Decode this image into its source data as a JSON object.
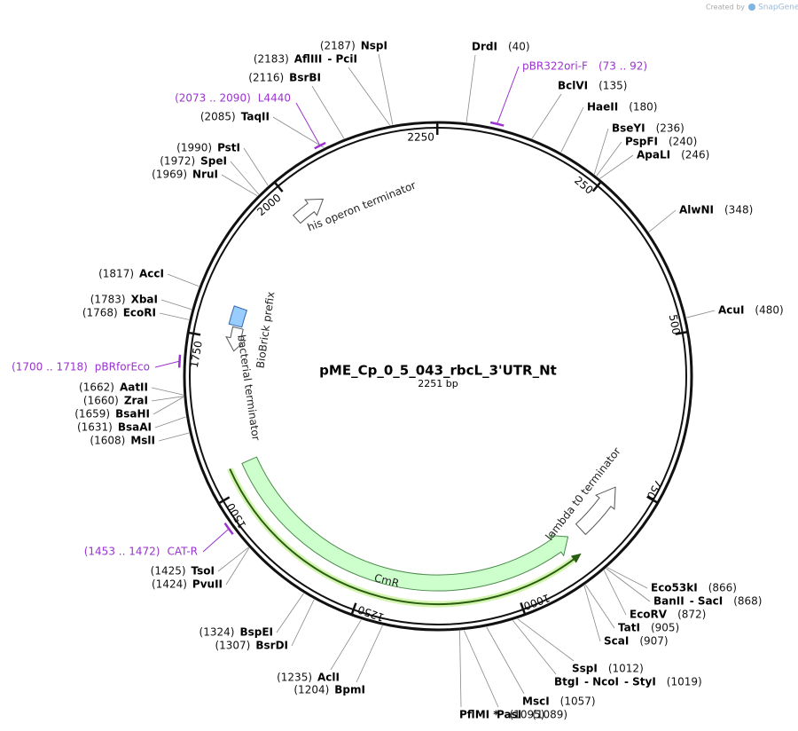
{
  "watermark": {
    "prefix": "Created by",
    "brand": "SnapGene"
  },
  "plasmid": {
    "name": "pME_Cp_0_5_043_rbcL_3'UTR_Nt",
    "length": {
      "value": 2251,
      "label": "2251 bp"
    },
    "ticks": [
      250,
      500,
      750,
      1000,
      1250,
      1500,
      1750,
      2000,
      2250
    ]
  },
  "sites": [
    {
      "names": [
        "DrdI"
      ],
      "position": {
        "value": 40,
        "label": "(40)"
      }
    },
    {
      "names": [
        "BclVI"
      ],
      "position": {
        "value": 135,
        "label": "(135)"
      }
    },
    {
      "names": [
        "HaeII"
      ],
      "position": {
        "value": 180,
        "label": "(180)"
      }
    },
    {
      "names": [
        "BseYI"
      ],
      "position": {
        "value": 236,
        "label": "(236)"
      }
    },
    {
      "names": [
        "PspFI"
      ],
      "position": {
        "value": 240,
        "label": "(240)"
      }
    },
    {
      "names": [
        "ApaLI"
      ],
      "position": {
        "value": 246,
        "label": "(246)"
      }
    },
    {
      "names": [
        "AlwNI"
      ],
      "position": {
        "value": 348,
        "label": "(348)"
      }
    },
    {
      "names": [
        "AcuI"
      ],
      "position": {
        "value": 480,
        "label": "(480)"
      }
    },
    {
      "names": [
        "Eco53kI"
      ],
      "position": {
        "value": 866,
        "label": "(866)"
      }
    },
    {
      "names": [
        "BanII",
        "- SacI"
      ],
      "position": {
        "value": 868,
        "label": "(868)"
      }
    },
    {
      "names": [
        "EcoRV"
      ],
      "position": {
        "value": 872,
        "label": "(872)"
      }
    },
    {
      "names": [
        "TatI"
      ],
      "position": {
        "value": 905,
        "label": "(905)"
      }
    },
    {
      "names": [
        "ScaI"
      ],
      "position": {
        "value": 907,
        "label": "(907)"
      }
    },
    {
      "names": [
        "SspI"
      ],
      "position": {
        "value": 1012,
        "label": "(1012)"
      }
    },
    {
      "names": [
        "BtgI",
        "- NcoI",
        "- StyI"
      ],
      "position": {
        "value": 1019,
        "label": "(1019)"
      }
    },
    {
      "names": [
        "MscI"
      ],
      "position": {
        "value": 1057,
        "label": "(1057)"
      }
    },
    {
      "names": [
        "PasI"
      ],
      "position": {
        "value": 1089,
        "label": "(1089)"
      }
    },
    {
      "names": [
        "PflMI *"
      ],
      "position": {
        "value": 1095,
        "label": "(1095)"
      }
    },
    {
      "names": [
        "BpmI"
      ],
      "position": {
        "value": 1204,
        "label": "(1204)"
      }
    },
    {
      "names": [
        "AclI"
      ],
      "position": {
        "value": 1235,
        "label": "(1235)"
      }
    },
    {
      "names": [
        "BsrDI"
      ],
      "position": {
        "value": 1307,
        "label": "(1307)"
      }
    },
    {
      "names": [
        "BspEI"
      ],
      "position": {
        "value": 1324,
        "label": "(1324)"
      }
    },
    {
      "names": [
        "TsoI"
      ],
      "position": {
        "value": 1425,
        "label": "(1425)"
      }
    },
    {
      "names": [
        "PvuII"
      ],
      "position": {
        "value": 1424,
        "label": "(1424)"
      }
    },
    {
      "names": [
        "MslI"
      ],
      "position": {
        "value": 1608,
        "label": "(1608)"
      }
    },
    {
      "names": [
        "BsaAI"
      ],
      "position": {
        "value": 1631,
        "label": "(1631)"
      }
    },
    {
      "names": [
        "BsaHI"
      ],
      "position": {
        "value": 1659,
        "label": "(1659)"
      }
    },
    {
      "names": [
        "ZraI"
      ],
      "position": {
        "value": 1660,
        "label": "(1660)"
      }
    },
    {
      "names": [
        "AatII"
      ],
      "position": {
        "value": 1662,
        "label": "(1662)"
      }
    },
    {
      "names": [
        "EcoRI"
      ],
      "position": {
        "value": 1768,
        "label": "(1768)"
      }
    },
    {
      "names": [
        "XbaI"
      ],
      "position": {
        "value": 1783,
        "label": "(1783)"
      }
    },
    {
      "names": [
        "AccI"
      ],
      "position": {
        "value": 1817,
        "label": "(1817)"
      }
    },
    {
      "names": [
        "NruI"
      ],
      "position": {
        "value": 1969,
        "label": "(1969)"
      }
    },
    {
      "names": [
        "SpeI"
      ],
      "position": {
        "value": 1972,
        "label": "(1972)"
      }
    },
    {
      "names": [
        "PstI"
      ],
      "position": {
        "value": 1990,
        "label": "(1990)"
      }
    },
    {
      "names": [
        "TaqII"
      ],
      "position": {
        "value": 2085,
        "label": "(2085)"
      }
    },
    {
      "names": [
        "BsrBI"
      ],
      "position": {
        "value": 2116,
        "label": "(2116)"
      }
    },
    {
      "names": [
        "AflIII",
        "- PciI"
      ],
      "position": {
        "value": 2183,
        "label": "(2183)"
      }
    },
    {
      "names": [
        "NspI"
      ],
      "position": {
        "value": 2187,
        "label": "(2187)"
      }
    }
  ],
  "primers": [
    {
      "name": "pBR322ori-F",
      "range": {
        "start": 73,
        "end": 92,
        "label": "(73 .. 92)"
      }
    },
    {
      "name": "L4440",
      "range": {
        "start": 2073,
        "end": 2090,
        "label": "(2073 .. 2090)"
      }
    },
    {
      "name": "pBRforEco",
      "range": {
        "start": 1700,
        "end": 1718,
        "label": "(1700 .. 1718)"
      }
    },
    {
      "name": "CAT-R",
      "range": {
        "start": 1453,
        "end": 1472,
        "label": "(1453 .. 1472)"
      }
    }
  ],
  "features": [
    {
      "name": "his operon terminator"
    },
    {
      "name": "BioBrick prefix"
    },
    {
      "name": "bacterial terminator"
    },
    {
      "name": "CmR"
    },
    {
      "name": "lambda t0 terminator"
    }
  ]
}
